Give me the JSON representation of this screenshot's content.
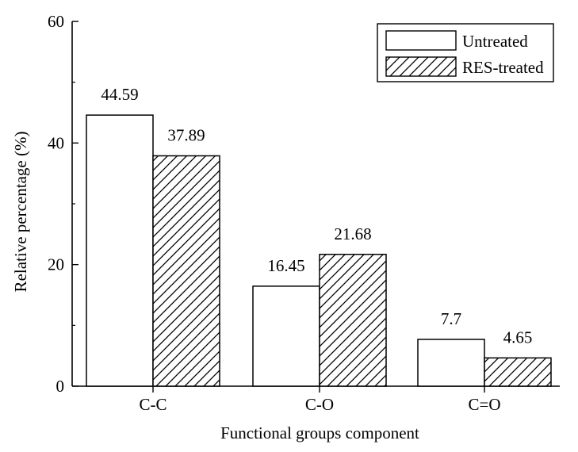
{
  "chart_data": {
    "type": "bar",
    "title": "",
    "xlabel": "Functional groups component",
    "ylabel": "Relative percentage (%)",
    "categories": [
      "C-C",
      "C-O",
      "C=O"
    ],
    "ylim": [
      0,
      60
    ],
    "yticks": [
      0,
      20,
      40,
      60
    ],
    "grid": false,
    "legend_position": "top-right",
    "series": [
      {
        "name": "Untreated",
        "pattern": "none",
        "values": [
          44.59,
          16.45,
          7.7
        ],
        "value_labels": [
          "44.59",
          "16.45",
          "7.7"
        ]
      },
      {
        "name": "RES-treated",
        "pattern": "diagonal-hatch",
        "values": [
          37.89,
          21.68,
          4.65
        ],
        "value_labels": [
          "37.89",
          "21.68",
          "4.65"
        ]
      }
    ]
  },
  "colors": {
    "bar_fill": "#ffffff",
    "stroke": "#000000",
    "background": "#ffffff"
  }
}
